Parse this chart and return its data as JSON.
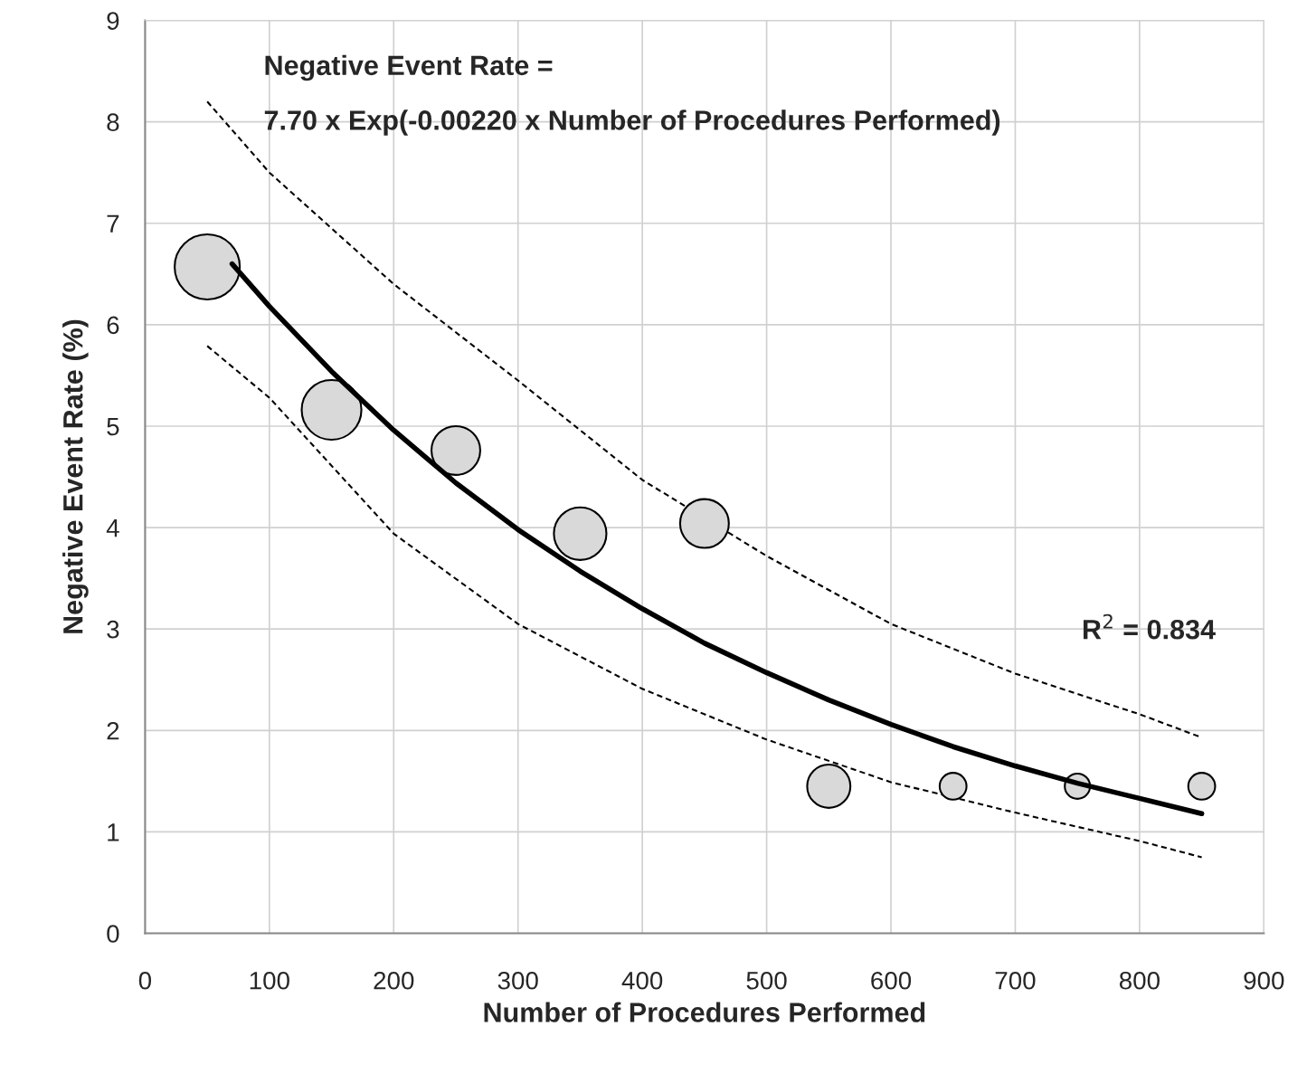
{
  "chart_data": {
    "type": "bubble",
    "xlabel": "Number of Procedures Performed",
    "ylabel": "Negative Event Rate (%)",
    "xlim": [
      0,
      900
    ],
    "xticks": [
      0,
      100,
      200,
      300,
      400,
      500,
      600,
      700,
      800,
      900
    ],
    "ylim": [
      0,
      9
    ],
    "yticks": [
      0,
      1,
      2,
      3,
      4,
      5,
      6,
      7,
      8,
      9
    ],
    "grid": true,
    "legend": false,
    "annotations": [
      "Negative Event Rate =",
      "7.70 x Exp(-0.00220 x Number of Procedures Performed)",
      "R$^{2}$ = 0.834"
    ],
    "series": [
      {
        "color": "#d9d9d9",
        "x": [
          50,
          150,
          250,
          350,
          450,
          550,
          650,
          750,
          850
        ],
        "values": [
          6.57,
          5.16,
          4.76,
          3.94,
          4.04,
          1.45,
          1.45,
          1.45,
          1.45
        ],
        "sizes": [
          1,
          0.84,
          0.56,
          0.65,
          0.56,
          0.44,
          0.17,
          0.15,
          0.17
        ]
      },
      {
        "type": "line",
        "color": "#000000",
        "line_style": "solid",
        "marker": "none",
        "x": [
          70,
          100,
          150,
          200,
          250,
          300,
          350,
          400,
          450,
          500,
          550,
          600,
          650,
          700,
          750,
          800,
          850
        ],
        "values": [
          6.6,
          6.18,
          5.54,
          4.96,
          4.44,
          3.98,
          3.57,
          3.2,
          2.86,
          2.57,
          2.3,
          2.06,
          1.84,
          1.65,
          1.48,
          1.33,
          1.18
        ]
      },
      {
        "type": "line",
        "color": "#000000",
        "line_style": "dashed",
        "marker": "none",
        "x": [
          50,
          100,
          200,
          300,
          400,
          500,
          600,
          700,
          800,
          850
        ],
        "values": [
          8.2,
          7.5,
          6.4,
          5.45,
          4.47,
          3.72,
          3.05,
          2.56,
          2.16,
          1.93
        ]
      },
      {
        "type": "line",
        "color": "#000000",
        "line_style": "dashed",
        "marker": "none",
        "x": [
          50,
          100,
          200,
          300,
          400,
          500,
          600,
          700,
          800,
          850
        ],
        "values": [
          5.79,
          5.28,
          3.94,
          3.05,
          2.41,
          1.91,
          1.49,
          1.19,
          0.91,
          0.75
        ]
      }
    ]
  }
}
